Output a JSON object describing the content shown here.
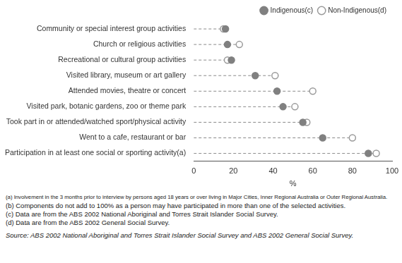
{
  "chart_data": {
    "type": "dot",
    "orientation": "horizontal",
    "categories": [
      "Community or special interest group activities",
      "Church or religious activities",
      "Recreational or cultural group activities",
      "Visited library, museum or art gallery",
      "Attended movies, theatre or concert",
      "Visited park, botanic gardens, zoo or theme park",
      "Took part in or attended/watched sport/physical activity",
      "Went to a cafe, restaurant or bar",
      "Participation in at least one social or sporting activity(a)"
    ],
    "series": [
      {
        "name": "Indigenous(c)",
        "color": "#808080",
        "marker": "filled_circle",
        "values": [
          16,
          17,
          19,
          31,
          42,
          45,
          55,
          65,
          88
        ]
      },
      {
        "name": "Non-Indigenous(d)",
        "color": "#9a9a9a",
        "marker": "open_circle",
        "values": [
          15,
          23,
          17,
          41,
          60,
          51,
          57,
          80,
          92
        ]
      }
    ],
    "line_style": "dashed",
    "xlabel": "%",
    "xlim": [
      0,
      100
    ],
    "xticks": [
      0,
      20,
      40,
      60,
      80,
      100
    ],
    "grid": false,
    "legend": "top-right",
    "notes": [
      "(a) Involvement in the 3 months prior to interview by persons aged 18 years or over living in Major Cities, Inner Regional Australia or Outer Regional Australia.",
      "(b) Components do not add to 100% as a person may have participated in more than one of the selected activities.",
      "(c) Data are from the ABS 2002 National Aboriginal and Torres Strait Islander Social Survey.",
      "(d) Data are from the ABS 2002 General Social Survey."
    ],
    "source": "Source: ABS 2002 National Aboriginal and Torres Strait Islander Social Survey and ABS 2002 General Social Survey."
  }
}
